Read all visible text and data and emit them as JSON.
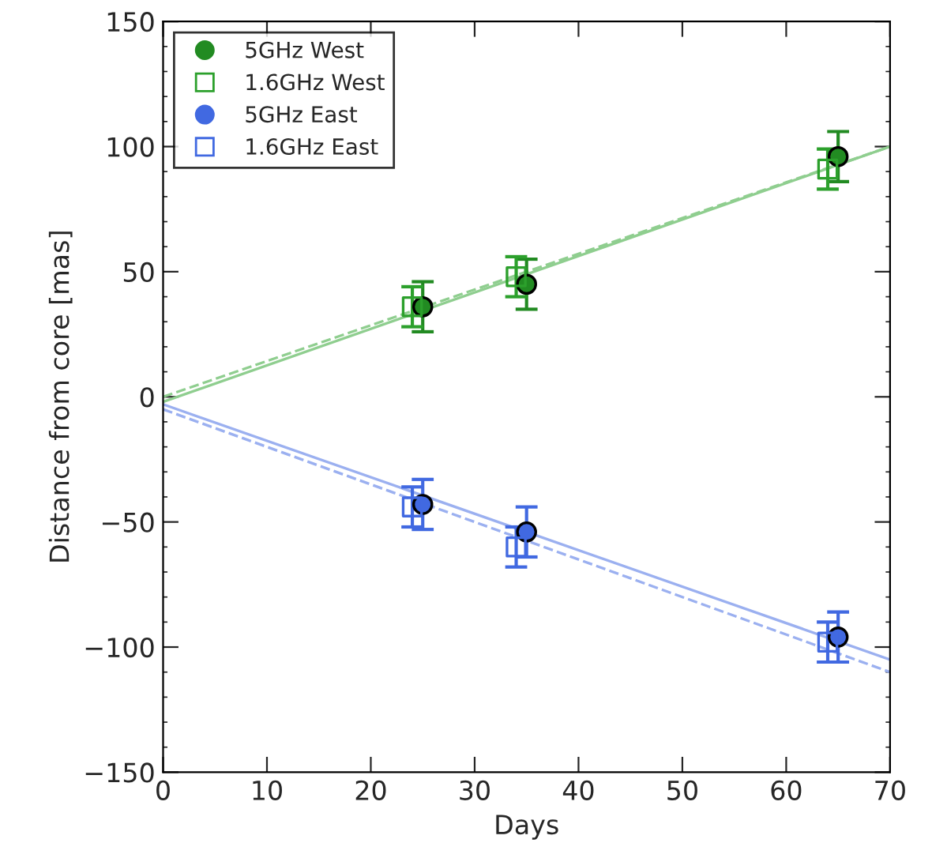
{
  "chart_data": {
    "type": "scatter",
    "xlabel": "Days",
    "ylabel": "Distance from core [mas]",
    "xlim": [
      0,
      70
    ],
    "ylim": [
      -150,
      150
    ],
    "xticks": [
      0,
      10,
      20,
      30,
      40,
      50,
      60,
      70
    ],
    "yticks": [
      -150,
      -100,
      -50,
      0,
      50,
      100,
      150
    ],
    "grid": false,
    "legend": "top left",
    "series": [
      {
        "type": "line",
        "color": "#8fce8f",
        "line_style": "solid",
        "x": [
          0,
          70
        ],
        "values": [
          -2,
          100
        ]
      },
      {
        "type": "line",
        "color": "#8fce8f",
        "line_style": "dashed",
        "x": [
          0,
          70
        ],
        "values": [
          0,
          100
        ]
      },
      {
        "type": "line",
        "color": "#9bb0f0",
        "line_style": "solid",
        "x": [
          0,
          70
        ],
        "values": [
          -3,
          -105
        ]
      },
      {
        "type": "line",
        "color": "#9bb0f0",
        "line_style": "dashed",
        "x": [
          0,
          70
        ],
        "values": [
          -5,
          -110
        ]
      },
      {
        "name": "5GHz West",
        "color": "#228b22",
        "marker": "circle",
        "x": [
          25,
          35,
          65
        ],
        "values": [
          36,
          45,
          96
        ],
        "errors": [
          10,
          10,
          10
        ]
      },
      {
        "name": "1.6GHz West",
        "color": "#2ca02c",
        "marker": "square",
        "x": [
          24,
          34,
          64
        ],
        "values": [
          36,
          48,
          91
        ],
        "errors": [
          8,
          8,
          8
        ]
      },
      {
        "name": "5GHz East",
        "color": "#4169e1",
        "marker": "circle",
        "x": [
          25,
          35,
          65
        ],
        "values": [
          -43,
          -54,
          -96
        ],
        "errors": [
          10,
          10,
          10
        ]
      },
      {
        "name": "1.6GHz East",
        "color": "#4169e1",
        "marker": "square",
        "x": [
          24,
          34,
          64
        ],
        "values": [
          -44,
          -60,
          -98
        ],
        "errors": [
          8,
          8,
          8
        ]
      }
    ]
  }
}
